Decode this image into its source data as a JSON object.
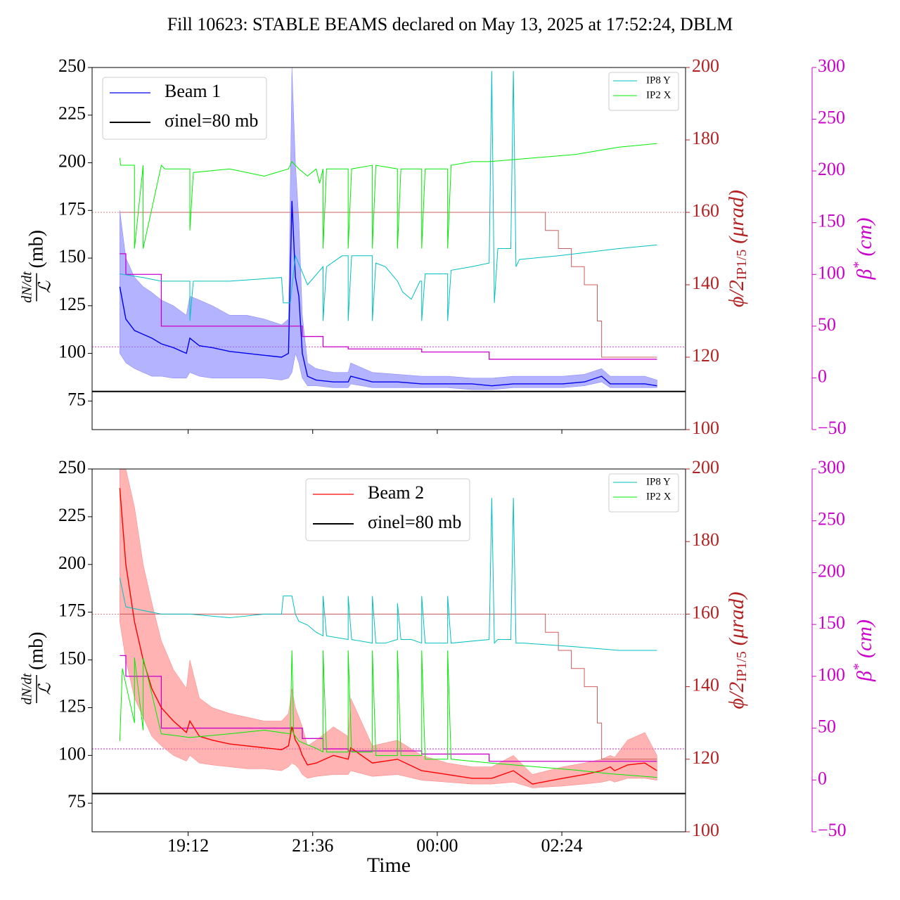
{
  "chart_data": [
    {
      "type": "line",
      "title": "Fill 10623: STABLE BEAMS declared on May 13, 2025 at 17:52:24, DBLM",
      "ylabel": {
        "numerator": "dN/dt",
        "denominator": "ℒ",
        "unit": "(mb)"
      },
      "y2label": {
        "text": "ϕ/2",
        "sub": "IP1/5",
        "unit": "(μrad)"
      },
      "y3label": {
        "text": "β",
        "sup": "*",
        "unit": "(cm)"
      },
      "xlim": [
        1041,
        1727
      ],
      "xticks": [
        1152,
        1296,
        1440,
        1584
      ],
      "ylim": [
        60,
        250
      ],
      "yticks": [
        75,
        100,
        125,
        150,
        175,
        200,
        225,
        250
      ],
      "y2lim": [
        100,
        200
      ],
      "y2ticks": [
        100,
        120,
        140,
        160,
        180,
        200
      ],
      "y2color": "#b22222",
      "y3lim": [
        -50,
        300
      ],
      "y3ticks": [
        {
          "value": -50,
          "label": "−50"
        },
        0,
        50,
        100,
        150,
        200,
        250,
        300
      ],
      "y3color": "#cc00cc",
      "legend": "upper left",
      "legend2": "upper right",
      "series": [
        {
          "name": "Beam 1",
          "color": "#0000ee",
          "band_color": "#8080ff",
          "x": [
            1073,
            1080,
            1090,
            1100,
            1110,
            1121,
            1135,
            1150,
            1154,
            1165,
            1180,
            1200,
            1220,
            1240,
            1260,
            1268,
            1272,
            1276,
            1280,
            1284,
            1290,
            1300,
            1320,
            1337,
            1340,
            1365,
            1394,
            1422,
            1452,
            1480,
            1503,
            1528,
            1550,
            1585,
            1610,
            1630,
            1640,
            1645,
            1660,
            1680,
            1694
          ],
          "values": [
            135,
            118,
            112,
            110,
            108,
            105,
            103,
            100,
            108,
            104,
            103,
            101,
            100,
            99,
            98,
            100,
            180,
            140,
            130,
            100,
            88,
            86,
            85,
            85,
            88,
            85,
            85,
            84,
            84,
            84,
            83,
            84,
            84,
            84,
            85,
            88,
            84,
            84,
            84,
            84,
            83
          ],
          "low": [
            100,
            95,
            92,
            90,
            88,
            88,
            87,
            87,
            90,
            88,
            87,
            87,
            87,
            87,
            86,
            87,
            90,
            100,
            95,
            87,
            83,
            83,
            82,
            82,
            84,
            82,
            82,
            82,
            82,
            81,
            81,
            82,
            82,
            82,
            83,
            85,
            82,
            82,
            82,
            82,
            82
          ],
          "high": [
            175,
            150,
            140,
            135,
            132,
            128,
            125,
            120,
            130,
            128,
            125,
            120,
            120,
            118,
            115,
            118,
            250,
            200,
            170,
            120,
            95,
            92,
            90,
            90,
            95,
            90,
            89,
            88,
            88,
            87,
            87,
            88,
            88,
            88,
            89,
            92,
            88,
            88,
            88,
            88,
            86
          ]
        },
        {
          "name": "σinel=80 mb",
          "color": "#000000",
          "value": 80
        },
        {
          "name": "IP8 Y",
          "color": "#00c0c0",
          "axis": "y2",
          "x": [
            1073,
            1100,
            1121,
            1154,
            1154,
            1158,
            1200,
            1260,
            1262,
            1270,
            1276,
            1290,
            1308,
            1308,
            1312,
            1330,
            1337,
            1337,
            1341,
            1365,
            1365,
            1369,
            1380,
            1394,
            1400,
            1410,
            1420,
            1422,
            1422,
            1426,
            1452,
            1452,
            1456,
            1480,
            1500,
            1503,
            1506,
            1510,
            1525,
            1528,
            1531,
            1535,
            1580,
            1650,
            1694
          ],
          "values": [
            143,
            142,
            141,
            141,
            130,
            141,
            141,
            142,
            135,
            135,
            148,
            140,
            145,
            130,
            145,
            148,
            148,
            130,
            148,
            148,
            130,
            146,
            145,
            141,
            138,
            136,
            141,
            141,
            130,
            143,
            143,
            130,
            144,
            145,
            146,
            199,
            135,
            150,
            150,
            199,
            145,
            147,
            148,
            150,
            151
          ]
        },
        {
          "name": "IP2 X",
          "color": "#00ee00",
          "axis": "y2",
          "x": [
            1073,
            1074,
            1090,
            1090,
            1100,
            1100,
            1121,
            1125,
            1154,
            1154,
            1158,
            1200,
            1240,
            1268,
            1272,
            1276,
            1280,
            1290,
            1300,
            1304,
            1308,
            1308,
            1312,
            1337,
            1337,
            1341,
            1365,
            1365,
            1369,
            1394,
            1394,
            1398,
            1422,
            1422,
            1426,
            1452,
            1452,
            1456,
            1480,
            1500,
            1550,
            1600,
            1650,
            1694
          ],
          "values": [
            175,
            173,
            173,
            150,
            173,
            150,
            173,
            172,
            172,
            155,
            171,
            172,
            170,
            172,
            174,
            173,
            172,
            170,
            172,
            168,
            172,
            150,
            172,
            172,
            150,
            172,
            173,
            150,
            173,
            172,
            150,
            172,
            172,
            150,
            172,
            172,
            150,
            173,
            174,
            174,
            175,
            176,
            178,
            179
          ]
        }
      ],
      "crossing_angle": {
        "color": "#cd5c5c",
        "axis": "y2",
        "step": true,
        "x": [
          1073,
          1550,
          1565,
          1580,
          1595,
          1610,
          1625,
          1630,
          1694
        ],
        "values": [
          160,
          160,
          155,
          150,
          145,
          140,
          130,
          120,
          120
        ]
      },
      "beta_star": {
        "color": "#cc00cc",
        "axis": "y3",
        "step": true,
        "x": [
          1073,
          1080,
          1121,
          1268,
          1284,
          1308,
          1337,
          1422,
          1500,
          1694
        ],
        "values": [
          120,
          100,
          50,
          50,
          40,
          30,
          28,
          25,
          18,
          18
        ]
      },
      "hlines": [
        {
          "value": 160,
          "axis": "y2",
          "color": "#cd5c5c"
        },
        {
          "value": 30,
          "axis": "y3",
          "color": "#cc00cc"
        }
      ]
    },
    {
      "type": "line",
      "xlabel": "Time",
      "ylabel": {
        "numerator": "dN/dt",
        "denominator": "ℒ",
        "unit": "(mb)"
      },
      "y2label": {
        "text": "ϕ/2",
        "sub": "IP1/5",
        "unit": "(μrad)"
      },
      "y3label": {
        "text": "β",
        "sup": "*",
        "unit": "(cm)"
      },
      "xlim": [
        1041,
        1727
      ],
      "xticks": [
        {
          "value": 1152,
          "label": "19:12"
        },
        {
          "value": 1296,
          "label": "21:36"
        },
        {
          "value": 1440,
          "label": "00:00"
        },
        {
          "value": 1584,
          "label": "02:24"
        }
      ],
      "ylim": [
        60,
        250
      ],
      "yticks": [
        75,
        100,
        125,
        150,
        175,
        200,
        225,
        250
      ],
      "y2lim": [
        100,
        200
      ],
      "y2ticks": [
        100,
        120,
        140,
        160,
        180,
        200
      ],
      "y2color": "#b22222",
      "y3lim": [
        -50,
        300
      ],
      "y3ticks": [
        {
          "value": -50,
          "label": "−50"
        },
        0,
        50,
        100,
        150,
        200,
        250,
        300
      ],
      "y3color": "#cc00cc",
      "legend": "upper center",
      "legend2": "upper right",
      "series": [
        {
          "name": "Beam 2",
          "color": "#ff0000",
          "band_color": "#ff8080",
          "x": [
            1073,
            1080,
            1090,
            1100,
            1110,
            1121,
            1135,
            1150,
            1154,
            1165,
            1180,
            1200,
            1220,
            1240,
            1260,
            1268,
            1272,
            1276,
            1280,
            1284,
            1290,
            1300,
            1320,
            1337,
            1340,
            1365,
            1394,
            1422,
            1452,
            1480,
            1503,
            1528,
            1550,
            1585,
            1610,
            1630,
            1640,
            1645,
            1660,
            1680,
            1694
          ],
          "values": [
            240,
            200,
            170,
            150,
            135,
            125,
            118,
            112,
            118,
            110,
            108,
            106,
            105,
            104,
            103,
            105,
            115,
            108,
            105,
            100,
            95,
            96,
            100,
            98,
            104,
            96,
            98,
            92,
            90,
            88,
            88,
            92,
            85,
            88,
            90,
            92,
            94,
            92,
            95,
            96,
            92
          ],
          "low": [
            170,
            150,
            130,
            120,
            110,
            105,
            100,
            97,
            100,
            96,
            95,
            94,
            93,
            93,
            92,
            94,
            96,
            95,
            93,
            90,
            88,
            89,
            90,
            90,
            92,
            89,
            90,
            87,
            86,
            85,
            85,
            86,
            83,
            84,
            85,
            86,
            87,
            86,
            88,
            88,
            87
          ],
          "high": [
            250,
            250,
            230,
            200,
            180,
            160,
            145,
            135,
            150,
            130,
            125,
            122,
            120,
            118,
            118,
            122,
            135,
            125,
            120,
            115,
            105,
            108,
            115,
            110,
            130,
            105,
            108,
            100,
            96,
            94,
            94,
            100,
            90,
            94,
            96,
            98,
            100,
            99,
            108,
            112,
            100
          ]
        },
        {
          "name": "σinel=80 mb",
          "color": "#000000",
          "value": 80
        },
        {
          "name": "IP8 Y",
          "color": "#00c0c0",
          "axis": "y2",
          "x": [
            1073,
            1080,
            1100,
            1121,
            1154,
            1200,
            1240,
            1260,
            1262,
            1272,
            1276,
            1280,
            1290,
            1300,
            1308,
            1308,
            1312,
            1337,
            1337,
            1341,
            1365,
            1365,
            1369,
            1380,
            1394,
            1394,
            1398,
            1410,
            1422,
            1422,
            1426,
            1452,
            1452,
            1456,
            1500,
            1503,
            1506,
            1510,
            1525,
            1528,
            1531,
            1540,
            1600,
            1650,
            1694
          ],
          "values": [
            170,
            162,
            161,
            160,
            160,
            159,
            160,
            160,
            165,
            165,
            160,
            158,
            157,
            155,
            154,
            165,
            154,
            153,
            165,
            153,
            152,
            165,
            152,
            152,
            153,
            163,
            153,
            153,
            152,
            165,
            152,
            152,
            165,
            152,
            153,
            192,
            152,
            153,
            153,
            192,
            152,
            152,
            151,
            150,
            150
          ]
        },
        {
          "name": "IP2 X",
          "color": "#00ee00",
          "axis": "y2",
          "x": [
            1073,
            1076,
            1090,
            1090,
            1100,
            1100,
            1121,
            1154,
            1200,
            1240,
            1270,
            1272,
            1274,
            1280,
            1290,
            1300,
            1308,
            1308,
            1312,
            1337,
            1337,
            1341,
            1365,
            1365,
            1369,
            1394,
            1394,
            1398,
            1422,
            1422,
            1426,
            1452,
            1452,
            1456,
            1500,
            1550,
            1600,
            1640,
            1694
          ],
          "values": [
            125,
            145,
            130,
            148,
            128,
            148,
            127,
            126,
            127,
            128,
            127,
            150,
            127,
            125,
            124,
            123,
            122,
            150,
            122,
            122,
            150,
            122,
            122,
            150,
            121,
            121,
            150,
            121,
            121,
            150,
            120,
            120,
            150,
            120,
            119,
            118,
            117,
            116,
            115
          ]
        }
      ],
      "crossing_angle": {
        "color": "#cd5c5c",
        "axis": "y2",
        "step": true,
        "x": [
          1073,
          1550,
          1565,
          1580,
          1595,
          1610,
          1625,
          1630,
          1694
        ],
        "values": [
          160,
          160,
          155,
          150,
          145,
          140,
          130,
          120,
          120
        ]
      },
      "beta_star": {
        "color": "#cc00cc",
        "axis": "y3",
        "step": true,
        "x": [
          1073,
          1080,
          1121,
          1268,
          1284,
          1308,
          1337,
          1422,
          1500,
          1694
        ],
        "values": [
          120,
          100,
          50,
          50,
          40,
          30,
          28,
          25,
          18,
          18
        ]
      },
      "hlines": [
        {
          "value": 160,
          "axis": "y2",
          "color": "#cd5c5c"
        },
        {
          "value": 30,
          "axis": "y3",
          "color": "#cc00cc"
        }
      ]
    }
  ]
}
